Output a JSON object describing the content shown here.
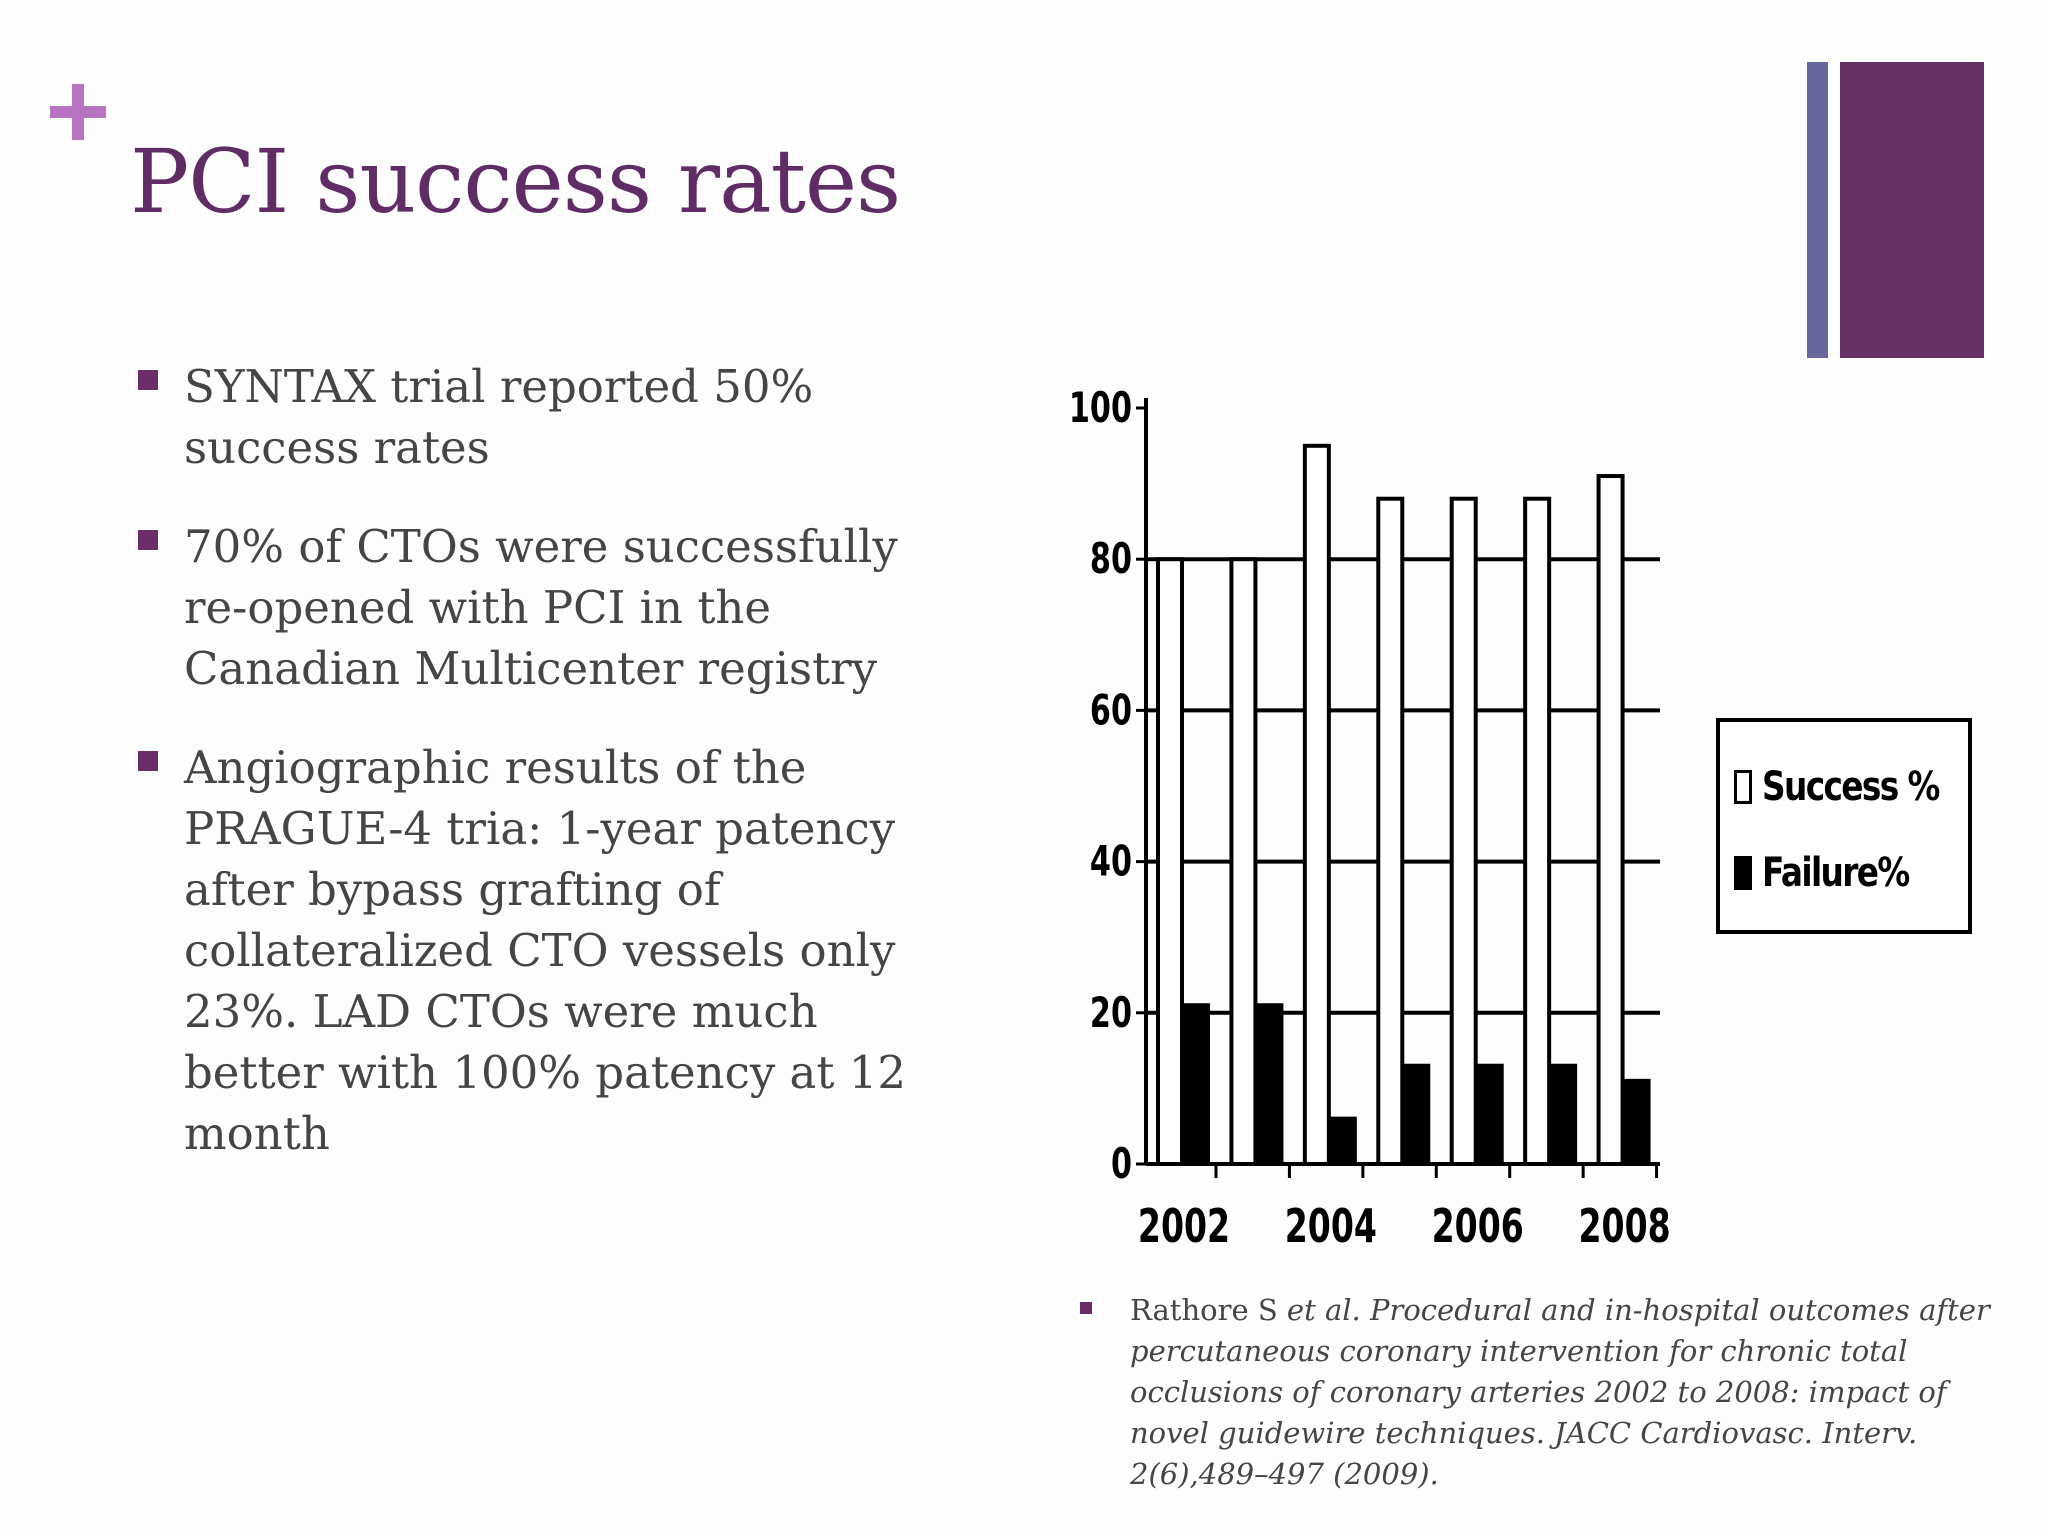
{
  "slide": {
    "title": "PCI success rates",
    "accent_color": "#663164",
    "secondary_accent_color": "#67679b",
    "plus_color": "#b973c3"
  },
  "bullets": [
    {
      "text": "SYNTAX trial reported 50%\nsuccess rates"
    },
    {
      "text": "70% of CTOs were successfully\nre-opened with PCI in the\nCanadian Multicenter registry"
    },
    {
      "text": "Angiographic results of the\nPRAGUE-4 tria: 1-year patency\nafter bypass grafting of\ncollateralized CTO vessels only\n23%. LAD CTOs were much\nbetter with 100% patency at 12\nmonth"
    }
  ],
  "citation": {
    "authors": "Rathore S",
    "rest": " et al. Procedural and in-hospital outcomes after percutaneous coronary intervention for chronic total occlusions of coronary arteries 2002 to 2008: impact of novel guidewire techniques. JACC Cardiovasc. Interv. 2(6),489–497 (2009)."
  },
  "chart_data": {
    "type": "bar",
    "categories": [
      "2002",
      "2003",
      "2004",
      "2005",
      "2006",
      "2007",
      "2008"
    ],
    "x_tick_labels": [
      "2002",
      "2004",
      "2006",
      "2008"
    ],
    "y_tick_labels": [
      "0",
      "20",
      "40",
      "60",
      "80",
      "100"
    ],
    "ylim": [
      0,
      100
    ],
    "grid": true,
    "legend_position": "right",
    "series": [
      {
        "name": "Success %",
        "color": "#ffffff",
        "values": [
          80,
          80,
          95,
          88,
          88,
          88,
          91
        ]
      },
      {
        "name": "Failure%",
        "color": "#000000",
        "values": [
          21,
          21,
          6,
          13,
          13,
          13,
          11
        ]
      }
    ]
  }
}
